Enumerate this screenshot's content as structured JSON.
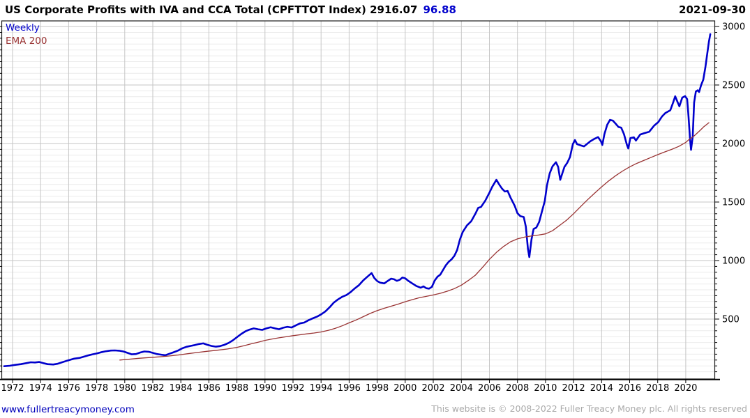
{
  "header": {
    "title_black": "US Corporate Profits with IVA and CCA Total (CPFTTOT Index) 2916.07",
    "title_blue": "96.88",
    "date": "2021-09-30"
  },
  "legend": {
    "series1_label": "Weekly",
    "series2_label": "EMA 200"
  },
  "footer": {
    "site_link": "www.fullertreacymoney.com",
    "copyright": "This website is © 2008-2022 Fuller Treacy Money plc. All rights reserved"
  },
  "colors": {
    "weekly_line": "#0000cc",
    "ema_line": "#993333",
    "grid_major": "#c6c6c6",
    "grid_minor": "#ebebeb",
    "border": "#1a1a1a",
    "link_blue": "#0000bb",
    "copy_gray": "#a9a9a9"
  },
  "chart_data": {
    "type": "line",
    "title": "US Corporate Profits with IVA and CCA Total (CPFTTOT Index)",
    "last_value": 2916.07,
    "secondary_value": 96.88,
    "as_of_date": "2021-09-30",
    "frequency": "Weekly",
    "overlay": "EMA 200",
    "x_domain": [
      1971.23,
      2022.07
    ],
    "y_domain": [
      -12,
      3048
    ],
    "x_ticks": [
      1972,
      1974,
      1976,
      1978,
      1980,
      1982,
      1984,
      1986,
      1988,
      1990,
      1992,
      1994,
      1996,
      1998,
      2000,
      2002,
      2004,
      2006,
      2008,
      2010,
      2012,
      2014,
      2016,
      2018,
      2020
    ],
    "y_ticks": [
      500,
      1000,
      1500,
      2000,
      2500,
      3000
    ],
    "y_minor_step": 50,
    "grid": true,
    "legend_position": "top-left",
    "series": [
      {
        "name": "Weekly",
        "color": "#0000cc",
        "width": 2.6,
        "points": [
          [
            1971.4,
            97
          ],
          [
            1971.8,
            101
          ],
          [
            1972.2,
            109
          ],
          [
            1972.6,
            115
          ],
          [
            1973.0,
            124
          ],
          [
            1973.3,
            131
          ],
          [
            1973.6,
            129
          ],
          [
            1973.9,
            133
          ],
          [
            1974.2,
            123
          ],
          [
            1974.5,
            115
          ],
          [
            1974.9,
            112
          ],
          [
            1975.2,
            118
          ],
          [
            1975.5,
            129
          ],
          [
            1975.8,
            141
          ],
          [
            1976.1,
            152
          ],
          [
            1976.4,
            162
          ],
          [
            1976.8,
            169
          ],
          [
            1977.1,
            179
          ],
          [
            1977.4,
            190
          ],
          [
            1977.7,
            199
          ],
          [
            1978.0,
            206
          ],
          [
            1978.3,
            216
          ],
          [
            1978.6,
            224
          ],
          [
            1979.0,
            231
          ],
          [
            1979.3,
            232
          ],
          [
            1979.6,
            230
          ],
          [
            1979.9,
            223
          ],
          [
            1980.2,
            211
          ],
          [
            1980.5,
            199
          ],
          [
            1980.8,
            201
          ],
          [
            1981.1,
            214
          ],
          [
            1981.4,
            223
          ],
          [
            1981.7,
            221
          ],
          [
            1982.0,
            211
          ],
          [
            1982.3,
            201
          ],
          [
            1982.6,
            196
          ],
          [
            1982.9,
            191
          ],
          [
            1983.2,
            204
          ],
          [
            1983.5,
            217
          ],
          [
            1983.8,
            231
          ],
          [
            1984.1,
            250
          ],
          [
            1984.4,
            263
          ],
          [
            1984.7,
            271
          ],
          [
            1985.0,
            278
          ],
          [
            1985.3,
            287
          ],
          [
            1985.6,
            292
          ],
          [
            1985.9,
            280
          ],
          [
            1986.2,
            270
          ],
          [
            1986.5,
            264
          ],
          [
            1986.8,
            269
          ],
          [
            1987.1,
            280
          ],
          [
            1987.4,
            296
          ],
          [
            1987.7,
            318
          ],
          [
            1988.0,
            345
          ],
          [
            1988.3,
            372
          ],
          [
            1988.6,
            395
          ],
          [
            1988.9,
            410
          ],
          [
            1989.2,
            420
          ],
          [
            1989.5,
            413
          ],
          [
            1989.8,
            408
          ],
          [
            1990.1,
            420
          ],
          [
            1990.4,
            430
          ],
          [
            1990.7,
            421
          ],
          [
            1991.0,
            413
          ],
          [
            1991.3,
            426
          ],
          [
            1991.6,
            434
          ],
          [
            1991.9,
            428
          ],
          [
            1992.2,
            446
          ],
          [
            1992.5,
            463
          ],
          [
            1992.8,
            470
          ],
          [
            1993.1,
            490
          ],
          [
            1993.4,
            506
          ],
          [
            1993.7,
            520
          ],
          [
            1994.0,
            540
          ],
          [
            1994.3,
            565
          ],
          [
            1994.6,
            600
          ],
          [
            1994.9,
            640
          ],
          [
            1995.2,
            668
          ],
          [
            1995.5,
            690
          ],
          [
            1995.8,
            705
          ],
          [
            1996.1,
            730
          ],
          [
            1996.4,
            762
          ],
          [
            1996.7,
            790
          ],
          [
            1997.0,
            830
          ],
          [
            1997.3,
            862
          ],
          [
            1997.6,
            893
          ],
          [
            1997.8,
            850
          ],
          [
            1998.0,
            825
          ],
          [
            1998.2,
            812
          ],
          [
            1998.5,
            805
          ],
          [
            1998.8,
            830
          ],
          [
            1999.0,
            845
          ],
          [
            1999.2,
            840
          ],
          [
            1999.4,
            827
          ],
          [
            1999.6,
            835
          ],
          [
            1999.8,
            855
          ],
          [
            2000.0,
            848
          ],
          [
            2000.2,
            828
          ],
          [
            2000.5,
            805
          ],
          [
            2000.8,
            782
          ],
          [
            2001.1,
            768
          ],
          [
            2001.3,
            779
          ],
          [
            2001.5,
            764
          ],
          [
            2001.7,
            760
          ],
          [
            2001.9,
            775
          ],
          [
            2002.1,
            830
          ],
          [
            2002.3,
            862
          ],
          [
            2002.5,
            880
          ],
          [
            2002.7,
            920
          ],
          [
            2002.9,
            960
          ],
          [
            2003.1,
            990
          ],
          [
            2003.3,
            1010
          ],
          [
            2003.5,
            1040
          ],
          [
            2003.7,
            1090
          ],
          [
            2003.9,
            1180
          ],
          [
            2004.1,
            1245
          ],
          [
            2004.4,
            1300
          ],
          [
            2004.7,
            1335
          ],
          [
            2005.0,
            1400
          ],
          [
            2005.2,
            1450
          ],
          [
            2005.4,
            1458
          ],
          [
            2005.7,
            1510
          ],
          [
            2006.0,
            1580
          ],
          [
            2006.2,
            1630
          ],
          [
            2006.5,
            1690
          ],
          [
            2006.7,
            1650
          ],
          [
            2006.9,
            1615
          ],
          [
            2007.1,
            1590
          ],
          [
            2007.3,
            1595
          ],
          [
            2007.5,
            1540
          ],
          [
            2007.8,
            1470
          ],
          [
            2008.0,
            1405
          ],
          [
            2008.2,
            1380
          ],
          [
            2008.45,
            1372
          ],
          [
            2008.6,
            1290
          ],
          [
            2008.75,
            1100
          ],
          [
            2008.85,
            1030
          ],
          [
            2009.0,
            1180
          ],
          [
            2009.15,
            1270
          ],
          [
            2009.35,
            1282
          ],
          [
            2009.55,
            1330
          ],
          [
            2009.75,
            1420
          ],
          [
            2009.95,
            1510
          ],
          [
            2010.1,
            1640
          ],
          [
            2010.3,
            1745
          ],
          [
            2010.5,
            1805
          ],
          [
            2010.75,
            1840
          ],
          [
            2010.9,
            1800
          ],
          [
            2011.05,
            1690
          ],
          [
            2011.2,
            1745
          ],
          [
            2011.35,
            1800
          ],
          [
            2011.55,
            1835
          ],
          [
            2011.75,
            1885
          ],
          [
            2011.95,
            1995
          ],
          [
            2012.1,
            2030
          ],
          [
            2012.25,
            1995
          ],
          [
            2012.5,
            1985
          ],
          [
            2012.75,
            1976
          ],
          [
            2013.0,
            2000
          ],
          [
            2013.2,
            2020
          ],
          [
            2013.45,
            2038
          ],
          [
            2013.75,
            2055
          ],
          [
            2013.95,
            2020
          ],
          [
            2014.05,
            1988
          ],
          [
            2014.2,
            2080
          ],
          [
            2014.4,
            2160
          ],
          [
            2014.6,
            2202
          ],
          [
            2014.8,
            2196
          ],
          [
            2015.0,
            2170
          ],
          [
            2015.2,
            2142
          ],
          [
            2015.4,
            2136
          ],
          [
            2015.6,
            2080
          ],
          [
            2015.8,
            1990
          ],
          [
            2015.9,
            1958
          ],
          [
            2016.05,
            2047
          ],
          [
            2016.3,
            2053
          ],
          [
            2016.45,
            2025
          ],
          [
            2016.75,
            2077
          ],
          [
            2017.05,
            2089
          ],
          [
            2017.4,
            2101
          ],
          [
            2017.75,
            2154
          ],
          [
            2018.05,
            2184
          ],
          [
            2018.3,
            2230
          ],
          [
            2018.55,
            2261
          ],
          [
            2018.9,
            2285
          ],
          [
            2019.1,
            2350
          ],
          [
            2019.25,
            2404
          ],
          [
            2019.4,
            2360
          ],
          [
            2019.55,
            2318
          ],
          [
            2019.75,
            2392
          ],
          [
            2019.95,
            2405
          ],
          [
            2020.1,
            2380
          ],
          [
            2020.2,
            2230
          ],
          [
            2020.3,
            2050
          ],
          [
            2020.38,
            1946
          ],
          [
            2020.5,
            2060
          ],
          [
            2020.6,
            2350
          ],
          [
            2020.72,
            2445
          ],
          [
            2020.85,
            2455
          ],
          [
            2020.95,
            2440
          ],
          [
            2021.1,
            2500
          ],
          [
            2021.25,
            2545
          ],
          [
            2021.4,
            2650
          ],
          [
            2021.55,
            2780
          ],
          [
            2021.65,
            2870
          ],
          [
            2021.75,
            2935
          ]
        ]
      },
      {
        "name": "EMA 200",
        "color": "#993333",
        "width": 1.3,
        "points": [
          [
            1979.65,
            150
          ],
          [
            1980.3,
            157
          ],
          [
            1981.0,
            165
          ],
          [
            1981.7,
            171
          ],
          [
            1982.4,
            177
          ],
          [
            1983.1,
            184
          ],
          [
            1983.8,
            193
          ],
          [
            1984.5,
            204
          ],
          [
            1985.2,
            215
          ],
          [
            1985.9,
            225
          ],
          [
            1986.6,
            234
          ],
          [
            1987.3,
            244
          ],
          [
            1988.0,
            258
          ],
          [
            1988.5,
            272
          ],
          [
            1989.0,
            288
          ],
          [
            1989.5,
            302
          ],
          [
            1990.0,
            318
          ],
          [
            1990.5,
            330
          ],
          [
            1991.0,
            340
          ],
          [
            1991.5,
            349
          ],
          [
            1992.0,
            358
          ],
          [
            1992.5,
            366
          ],
          [
            1993.0,
            374
          ],
          [
            1993.5,
            381
          ],
          [
            1994.0,
            390
          ],
          [
            1994.5,
            403
          ],
          [
            1995.0,
            420
          ],
          [
            1995.5,
            442
          ],
          [
            1996.0,
            468
          ],
          [
            1996.5,
            492
          ],
          [
            1997.0,
            520
          ],
          [
            1997.5,
            548
          ],
          [
            1998.0,
            572
          ],
          [
            1998.5,
            592
          ],
          [
            1999.0,
            610
          ],
          [
            1999.5,
            628
          ],
          [
            2000.0,
            648
          ],
          [
            2000.5,
            666
          ],
          [
            2001.0,
            682
          ],
          [
            2001.5,
            694
          ],
          [
            2002.0,
            706
          ],
          [
            2002.5,
            720
          ],
          [
            2003.0,
            738
          ],
          [
            2003.5,
            760
          ],
          [
            2004.0,
            790
          ],
          [
            2004.5,
            830
          ],
          [
            2005.0,
            875
          ],
          [
            2005.5,
            940
          ],
          [
            2006.0,
            1010
          ],
          [
            2006.5,
            1070
          ],
          [
            2007.0,
            1120
          ],
          [
            2007.5,
            1160
          ],
          [
            2008.0,
            1185
          ],
          [
            2008.5,
            1200
          ],
          [
            2009.0,
            1210
          ],
          [
            2009.5,
            1218
          ],
          [
            2010.0,
            1228
          ],
          [
            2010.5,
            1255
          ],
          [
            2011.0,
            1300
          ],
          [
            2011.5,
            1345
          ],
          [
            2012.0,
            1400
          ],
          [
            2012.5,
            1460
          ],
          [
            2013.0,
            1520
          ],
          [
            2013.5,
            1575
          ],
          [
            2014.0,
            1630
          ],
          [
            2014.5,
            1680
          ],
          [
            2015.0,
            1725
          ],
          [
            2015.5,
            1765
          ],
          [
            2016.0,
            1800
          ],
          [
            2016.5,
            1830
          ],
          [
            2017.0,
            1855
          ],
          [
            2017.5,
            1880
          ],
          [
            2018.0,
            1905
          ],
          [
            2018.5,
            1928
          ],
          [
            2019.0,
            1950
          ],
          [
            2019.5,
            1975
          ],
          [
            2020.0,
            2010
          ],
          [
            2020.3,
            2040
          ],
          [
            2020.6,
            2065
          ],
          [
            2021.0,
            2110
          ],
          [
            2021.3,
            2145
          ],
          [
            2021.65,
            2178
          ]
        ]
      }
    ]
  }
}
